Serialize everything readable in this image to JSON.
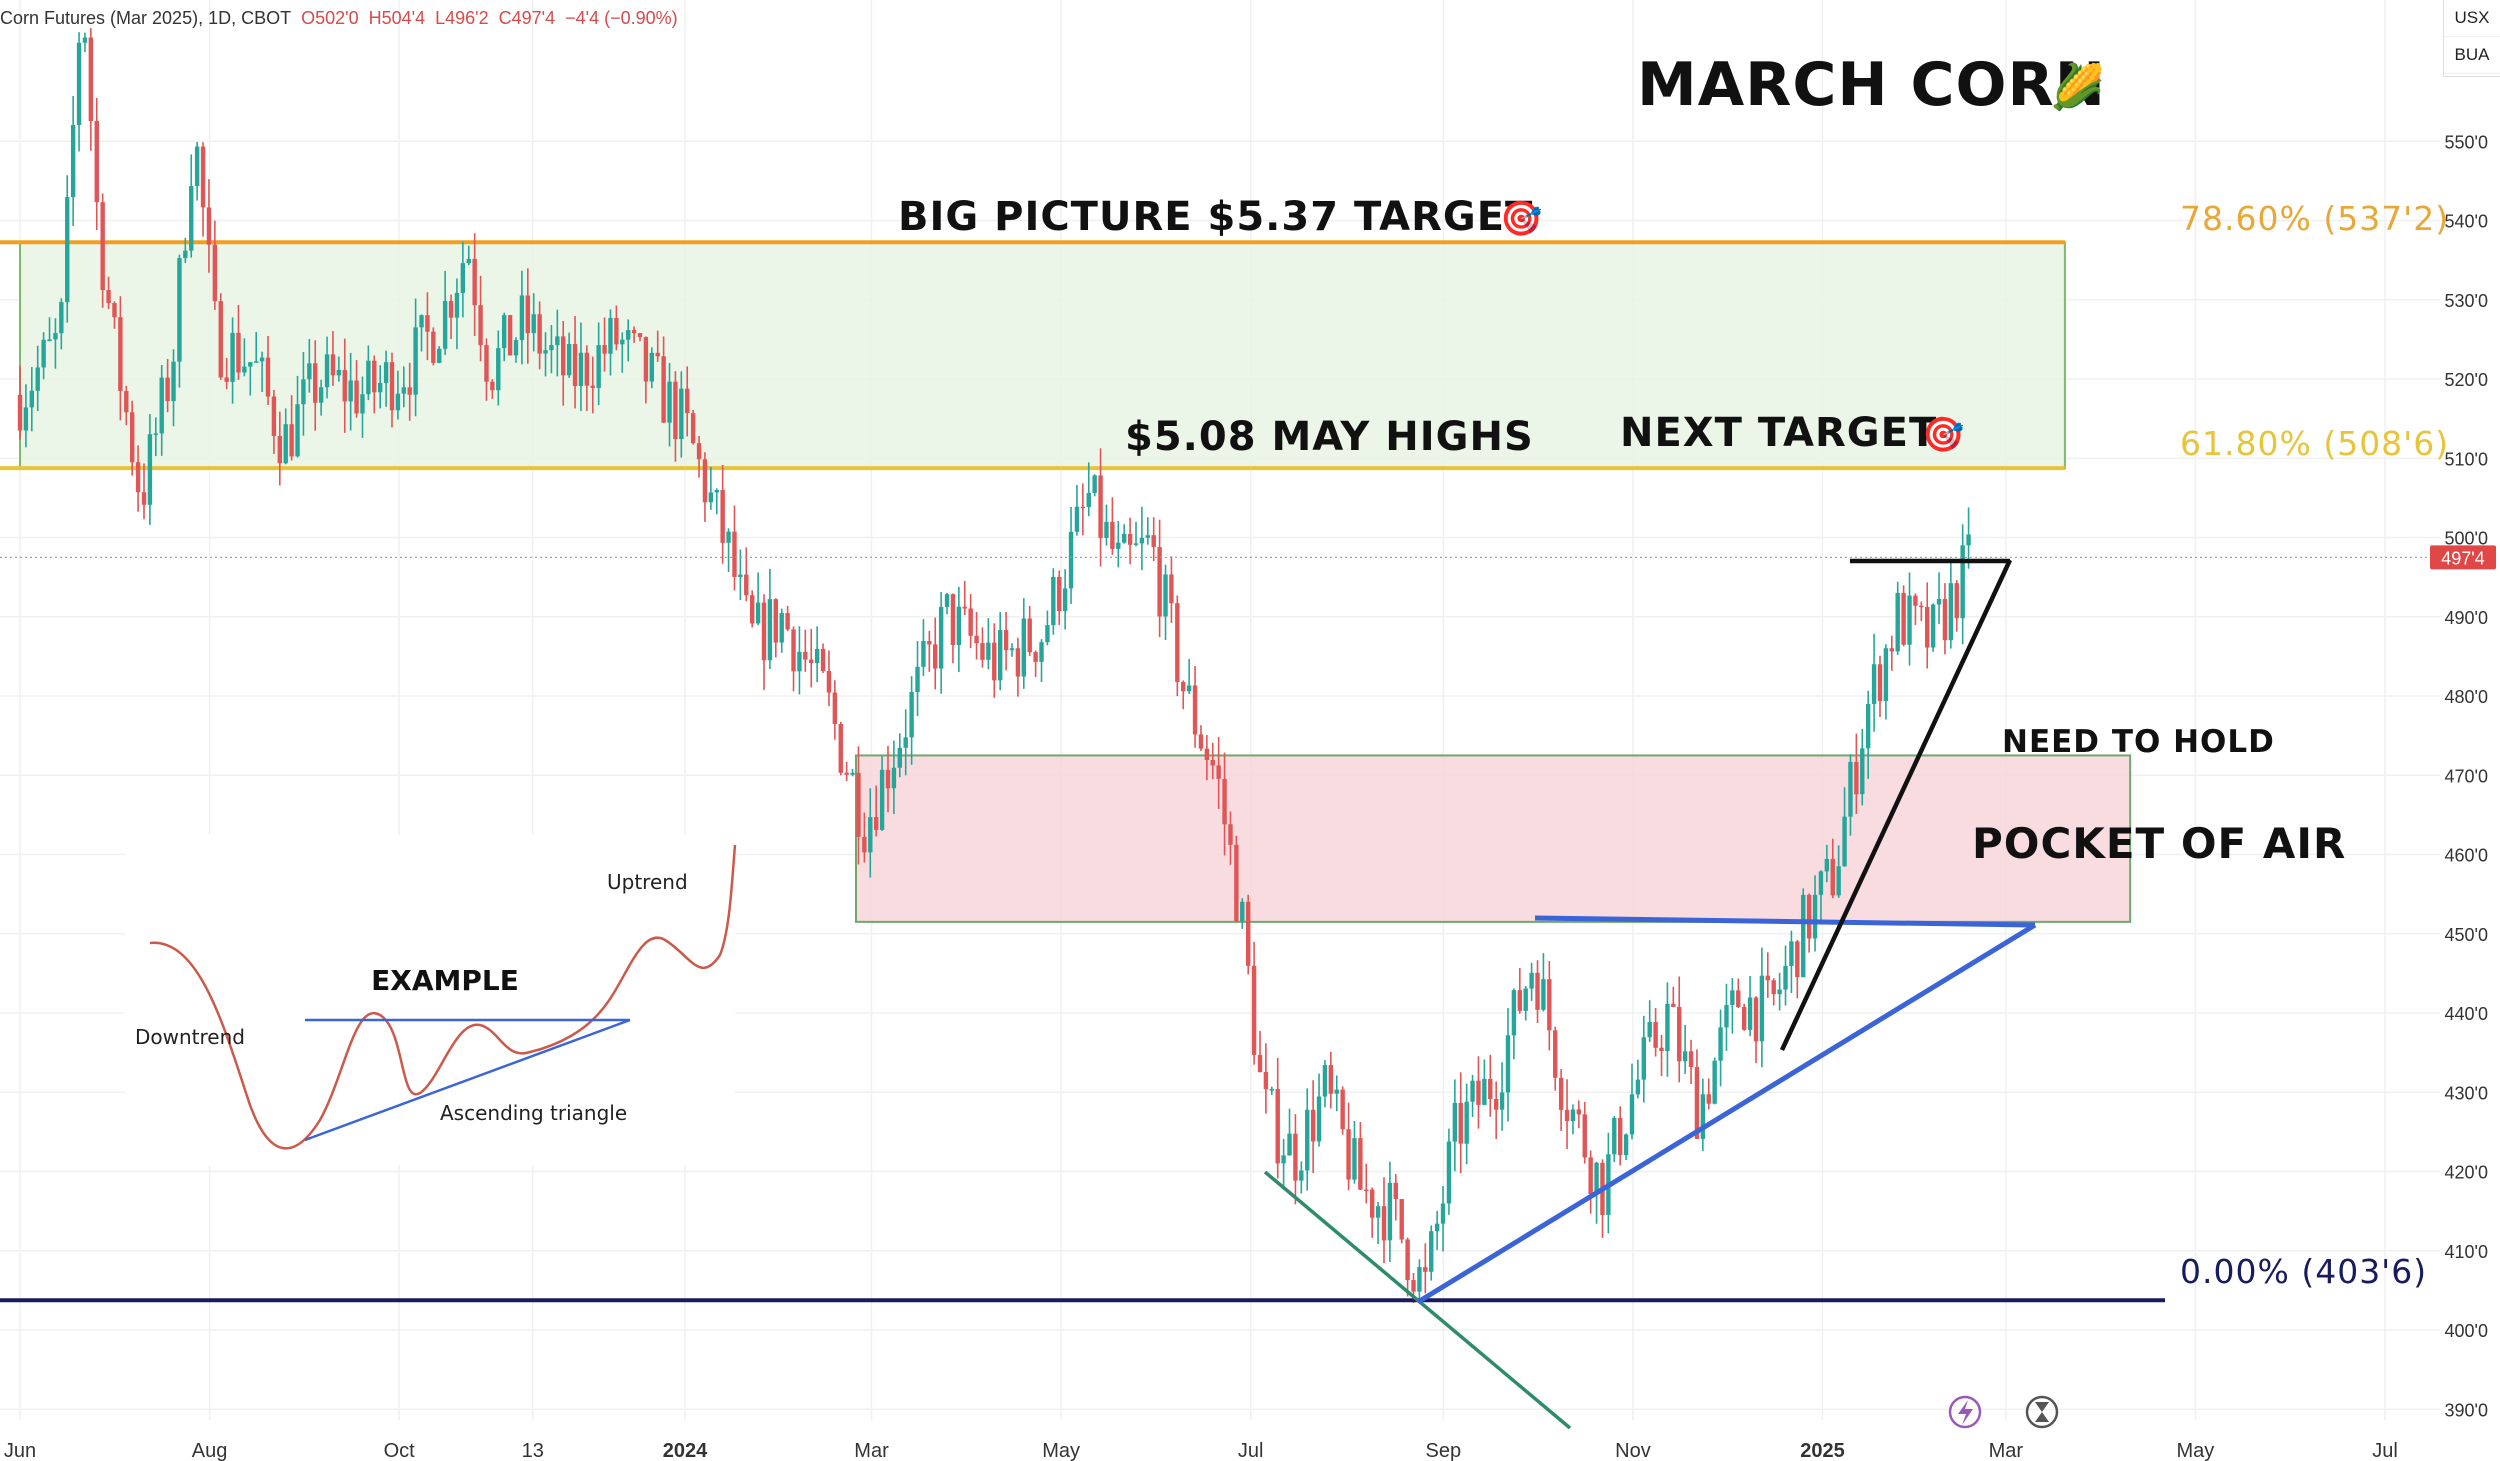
{
  "header": {
    "symbol": "Corn Futures (Mar 2025), 1D, CBOT",
    "open": "O502'0",
    "high": "H504'4",
    "low": "L496'2",
    "close": "C497'4",
    "change": "−4'4 (−0.90%)"
  },
  "currency_box": {
    "line1": "USX",
    "line2": "BUA"
  },
  "toolbar_icons": [
    "lightning-icon",
    "hourglass-icon"
  ],
  "colors": {
    "up_candle": "#26a69a",
    "down_candle": "#e05555",
    "fib_orange": "#f0a020",
    "green_zone": "#e8f5e4",
    "red_zone": "#f7d6da",
    "blue_trend": "#3a64d8",
    "navy_line": "#1a1a5e",
    "teal_line": "#2e8b6e",
    "price_tag": "#e04848"
  },
  "chart_data": {
    "type": "candlestick",
    "title": "MARCH CORN",
    "y_unit": "cents per bushel",
    "ylim": [
      385,
      560
    ],
    "y_ticks": [
      {
        "value": 390,
        "label": "390'0"
      },
      {
        "value": 400,
        "label": "400'0"
      },
      {
        "value": 410,
        "label": "410'0"
      },
      {
        "value": 420,
        "label": "420'0"
      },
      {
        "value": 430,
        "label": "430'0"
      },
      {
        "value": 440,
        "label": "440'0"
      },
      {
        "value": 450,
        "label": "450'0"
      },
      {
        "value": 460,
        "label": "460'0"
      },
      {
        "value": 470,
        "label": "470'0"
      },
      {
        "value": 480,
        "label": "480'0"
      },
      {
        "value": 490,
        "label": "490'0"
      },
      {
        "value": 500,
        "label": "500'0"
      },
      {
        "value": 510,
        "label": "510'0"
      },
      {
        "value": 520,
        "label": "520'0"
      },
      {
        "value": 530,
        "label": "530'0"
      },
      {
        "value": 540,
        "label": "540'0"
      },
      {
        "value": 550,
        "label": "550'0"
      }
    ],
    "x_ticks": [
      {
        "date": "2023-06-01",
        "label": "Jun",
        "bold": false
      },
      {
        "date": "2023-08-01",
        "label": "Aug",
        "bold": false
      },
      {
        "date": "2023-10-01",
        "label": "Oct",
        "bold": false
      },
      {
        "date": "2023-11-13",
        "label": "13",
        "bold": false
      },
      {
        "date": "2024-01-01",
        "label": "2024",
        "bold": true
      },
      {
        "date": "2024-03-01",
        "label": "Mar",
        "bold": false
      },
      {
        "date": "2024-05-01",
        "label": "May",
        "bold": false
      },
      {
        "date": "2024-07-01",
        "label": "Jul",
        "bold": false
      },
      {
        "date": "2024-09-01",
        "label": "Sep",
        "bold": false
      },
      {
        "date": "2024-11-01",
        "label": "Nov",
        "bold": false
      },
      {
        "date": "2025-01-01",
        "label": "2025",
        "bold": true
      },
      {
        "date": "2025-03-01",
        "label": "Mar",
        "bold": false
      },
      {
        "date": "2025-05-01",
        "label": "May",
        "bold": false
      },
      {
        "date": "2025-07-01",
        "label": "Jul",
        "bold": false
      }
    ],
    "x_range": [
      "2023-06-01",
      "2025-07-31"
    ],
    "price_path": [
      [
        "2023-06-01",
        518
      ],
      [
        "2023-06-14",
        525
      ],
      [
        "2023-06-21",
        570
      ],
      [
        "2023-06-26",
        540
      ],
      [
        "2023-07-01",
        525
      ],
      [
        "2023-07-10",
        505
      ],
      [
        "2023-07-20",
        522
      ],
      [
        "2023-07-27",
        552
      ],
      [
        "2023-08-03",
        525
      ],
      [
        "2023-08-15",
        522
      ],
      [
        "2023-08-25",
        512
      ],
      [
        "2023-09-05",
        520
      ],
      [
        "2023-09-20",
        518
      ],
      [
        "2023-10-05",
        522
      ],
      [
        "2023-10-15",
        528
      ],
      [
        "2023-10-23",
        537
      ],
      [
        "2023-10-30",
        521
      ],
      [
        "2023-11-10",
        527
      ],
      [
        "2023-11-25",
        520
      ],
      [
        "2023-12-10",
        525
      ],
      [
        "2023-12-25",
        518
      ],
      [
        "2024-01-01",
        514
      ],
      [
        "2024-01-15",
        498
      ],
      [
        "2024-01-22",
        487
      ],
      [
        "2024-02-01",
        490
      ],
      [
        "2024-02-15",
        480
      ],
      [
        "2024-02-28",
        464
      ],
      [
        "2024-03-10",
        475
      ],
      [
        "2024-03-25",
        490
      ],
      [
        "2024-04-10",
        484
      ],
      [
        "2024-04-25",
        488
      ],
      [
        "2024-05-10",
        505
      ],
      [
        "2024-05-20",
        496
      ],
      [
        "2024-05-30",
        499
      ],
      [
        "2024-06-10",
        480
      ],
      [
        "2024-06-20",
        470
      ],
      [
        "2024-06-28",
        452
      ],
      [
        "2024-07-05",
        428
      ],
      [
        "2024-07-15",
        422
      ],
      [
        "2024-07-25",
        430
      ],
      [
        "2024-08-05",
        418
      ],
      [
        "2024-08-15",
        415
      ],
      [
        "2024-08-26",
        405
      ],
      [
        "2024-09-05",
        425
      ],
      [
        "2024-09-18",
        432
      ],
      [
        "2024-09-30",
        447
      ],
      [
        "2024-10-10",
        430
      ],
      [
        "2024-10-22",
        418
      ],
      [
        "2024-11-01",
        430
      ],
      [
        "2024-11-12",
        440
      ],
      [
        "2024-11-22",
        428
      ],
      [
        "2024-12-05",
        442
      ],
      [
        "2024-12-15",
        440
      ],
      [
        "2024-12-25",
        450
      ],
      [
        "2025-01-05",
        458
      ],
      [
        "2025-01-15",
        478
      ],
      [
        "2025-01-25",
        490
      ],
      [
        "2025-02-05",
        487
      ],
      [
        "2025-02-15",
        495
      ],
      [
        "2025-02-18",
        497.5
      ]
    ],
    "last_price": {
      "value": 497.5,
      "label": "497'4"
    },
    "zones": [
      {
        "name": "green-target-zone",
        "y_from": 508.75,
        "y_to": 537.25,
        "x_from": "2023-06-01",
        "x_to": "2025-03-20"
      },
      {
        "name": "pocket-of-air-zone",
        "y_from": 451.5,
        "y_to": 472.5,
        "x_from": "2024-02-25",
        "x_to": "2025-04-10"
      }
    ],
    "fib_levels": [
      {
        "label": "78.60% (537'2)",
        "value": 537.25
      },
      {
        "label": "61.80% (508'6)",
        "value": 508.75
      },
      {
        "label": "0.00% (403'6)",
        "value": 403.75
      }
    ],
    "annotations": [
      {
        "text": "MARCH CORN",
        "emoji": "🌽"
      },
      {
        "text": "BIG PICTURE $5.37 TARGET",
        "emoji": "🎯"
      },
      {
        "text": "$5.08 MAY HIGHS"
      },
      {
        "text": "NEXT TARGET",
        "emoji": "🎯"
      },
      {
        "text": "NEED TO HOLD"
      },
      {
        "text": "POCKET OF AIR"
      }
    ],
    "example_inset": {
      "title": "EXAMPLE",
      "labels": [
        "Uptrend",
        "Downtrend",
        "Ascending triangle"
      ]
    }
  }
}
